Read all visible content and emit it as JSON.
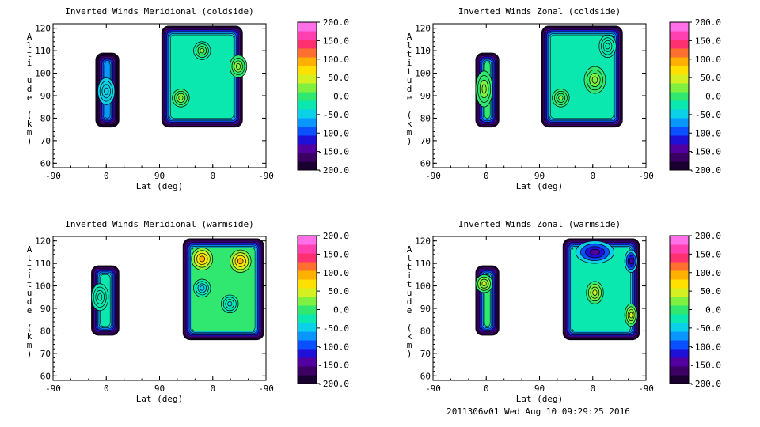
{
  "footer": "2011306v01 Wed Aug 10 09:29:25 2016",
  "chart_data": [
    {
      "type": "heatmap",
      "title": "Inverted Winds Meridional (coldside)",
      "xlabel": "Lat (deg)",
      "ylabel": "Altitude (km)",
      "x_ticks": [
        "-90",
        "0",
        "90",
        "0",
        "-90"
      ],
      "y_ticks": [
        "60",
        "70",
        "80",
        "90",
        "100",
        "110",
        "120"
      ],
      "ylim": [
        58,
        122
      ],
      "colorbar_ticks": [
        "200.0",
        "150.0",
        "100.0",
        "50.0",
        "0.0",
        "-50.0",
        "-100.0",
        "-150.0",
        "-200.0"
      ],
      "colorbar_range": [
        -200,
        200
      ],
      "blocks": [
        {
          "x0": 0.2,
          "x1": 0.31,
          "y0": 76,
          "y1": 109,
          "base": -60,
          "features": [
            [
              0.25,
              92,
              -55,
              0.04,
              6
            ]
          ]
        },
        {
          "x0": 0.51,
          "x1": 0.89,
          "y0": 76,
          "y1": 121,
          "base": -25,
          "features": [
            [
              0.6,
              89,
              30,
              0.04,
              4
            ],
            [
              0.87,
              103,
              30,
              0.04,
              5
            ],
            [
              0.7,
              110,
              20,
              0.04,
              4
            ]
          ]
        }
      ]
    },
    {
      "type": "heatmap",
      "title": "Inverted Winds Zonal (coldside)",
      "xlabel": "Lat (deg)",
      "ylabel": "Altitude (km)",
      "x_ticks": [
        "-90",
        "0",
        "90",
        "0",
        "-90"
      ],
      "y_ticks": [
        "60",
        "70",
        "80",
        "90",
        "100",
        "110",
        "120"
      ],
      "ylim": [
        58,
        122
      ],
      "colorbar_ticks": [
        "200.0",
        "150.0",
        "100.0",
        "50.0",
        "0.0",
        "-50.0",
        "-100.0",
        "-150.0",
        "-200.0"
      ],
      "colorbar_range": [
        -200,
        200
      ],
      "blocks": [
        {
          "x0": 0.2,
          "x1": 0.31,
          "y0": 76,
          "y1": 109,
          "base": -10,
          "features": [
            [
              0.24,
              93,
              25,
              0.04,
              8
            ]
          ]
        },
        {
          "x0": 0.51,
          "x1": 0.89,
          "y0": 76,
          "y1": 121,
          "base": -20,
          "features": [
            [
              0.76,
              97,
              35,
              0.05,
              6
            ],
            [
              0.6,
              89,
              15,
              0.04,
              4
            ],
            [
              0.82,
              112,
              -30,
              0.04,
              5
            ]
          ]
        }
      ]
    },
    {
      "type": "heatmap",
      "title": "Inverted Winds Meridional (warmside)",
      "xlabel": "Lat (deg)",
      "ylabel": "Altitude (km)",
      "x_ticks": [
        "-90",
        "0",
        "90",
        "0",
        "-90"
      ],
      "y_ticks": [
        "60",
        "70",
        "80",
        "90",
        "100",
        "110",
        "120"
      ],
      "ylim": [
        58,
        122
      ],
      "colorbar_ticks": [
        "200.0",
        "150.0",
        "100.0",
        "50.0",
        "0.0",
        "-50.0",
        "-100.0",
        "-150.0",
        "-200.0"
      ],
      "colorbar_range": [
        -200,
        200
      ],
      "blocks": [
        {
          "x0": 0.18,
          "x1": 0.31,
          "y0": 78,
          "y1": 109,
          "base": -15,
          "features": [
            [
              0.22,
              95,
              -30,
              0.04,
              6
            ]
          ]
        },
        {
          "x0": 0.61,
          "x1": 0.99,
          "y0": 76,
          "y1": 121,
          "base": -10,
          "features": [
            [
              0.7,
              112,
              85,
              0.05,
              5
            ],
            [
              0.88,
              111,
              90,
              0.05,
              5
            ],
            [
              0.7,
              99,
              -45,
              0.04,
              4
            ],
            [
              0.83,
              92,
              -40,
              0.04,
              4
            ]
          ]
        }
      ]
    },
    {
      "type": "heatmap",
      "title": "Inverted Winds Zonal (warmside)",
      "xlabel": "Lat (deg)",
      "ylabel": "Altitude (km)",
      "x_ticks": [
        "-90",
        "0",
        "90",
        "0",
        "-90"
      ],
      "y_ticks": [
        "60",
        "70",
        "80",
        "90",
        "100",
        "110",
        "120"
      ],
      "ylim": [
        58,
        122
      ],
      "colorbar_ticks": [
        "200.0",
        "150.0",
        "100.0",
        "50.0",
        "0.0",
        "-50.0",
        "-100.0",
        "-150.0",
        "-200.0"
      ],
      "colorbar_range": [
        -200,
        200
      ],
      "blocks": [
        {
          "x0": 0.2,
          "x1": 0.31,
          "y0": 78,
          "y1": 109,
          "base": -10,
          "features": [
            [
              0.24,
              101,
              45,
              0.04,
              4
            ]
          ]
        },
        {
          "x0": 0.61,
          "x1": 0.97,
          "y0": 76,
          "y1": 121,
          "base": -20,
          "features": [
            [
              0.76,
              115,
              -150,
              0.09,
              5
            ],
            [
              0.76,
              97,
              45,
              0.04,
              5
            ],
            [
              0.93,
              87,
              45,
              0.03,
              5
            ],
            [
              0.93,
              111,
              -150,
              0.03,
              5
            ]
          ]
        }
      ]
    }
  ]
}
